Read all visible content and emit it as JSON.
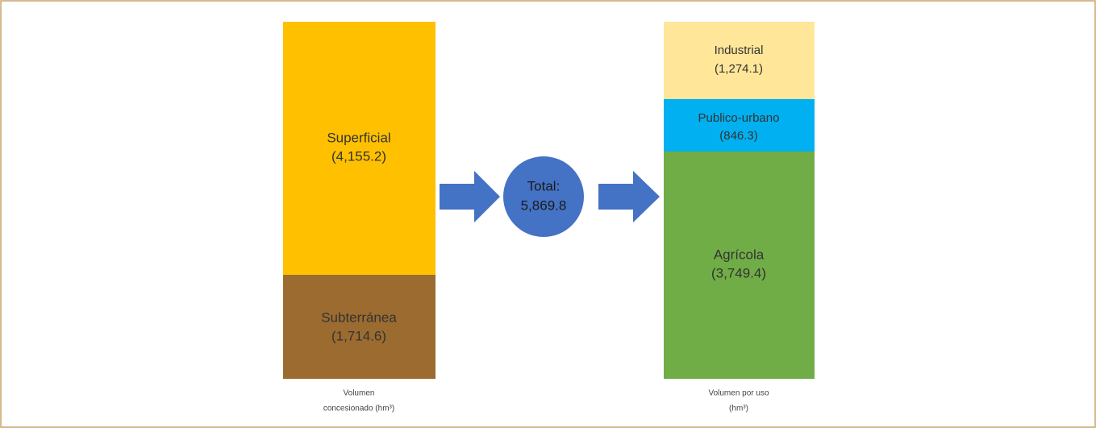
{
  "left_bar": {
    "segments": [
      {
        "name": "Superficial",
        "value": "(4,155.2)"
      },
      {
        "name": "Subterránea",
        "value": "(1,714.6)"
      }
    ],
    "caption": [
      "Volumen",
      "concesionado (hm³)"
    ]
  },
  "center": {
    "label": "Total:",
    "value": "5,869.8"
  },
  "right_bar": {
    "segments": [
      {
        "name": "Industrial",
        "value": "(1,274.1)"
      },
      {
        "name": "Publico-urbano",
        "value": "(846.3)"
      },
      {
        "name": "Agrícola",
        "value": "(3,749.4)"
      }
    ],
    "caption": [
      "Volumen por uso",
      "(hm³)"
    ]
  }
}
